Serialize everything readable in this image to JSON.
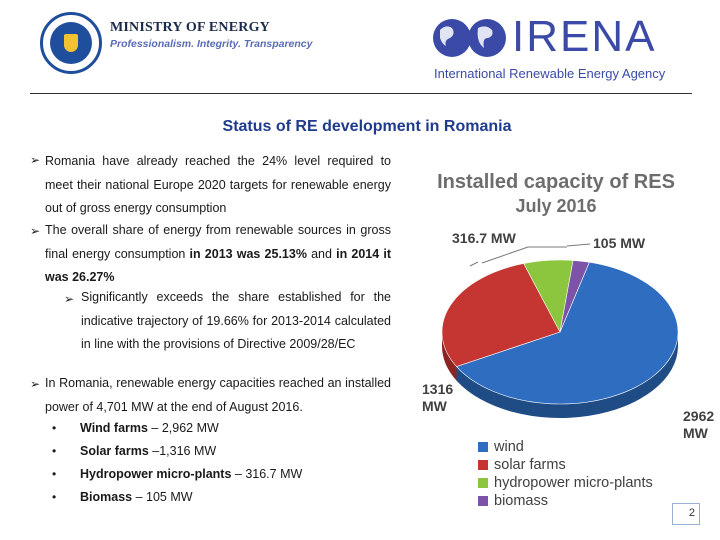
{
  "header": {
    "seal_text": "GUVERNUL ROMÂNIEI",
    "ministry_name": "MINISTRY OF ENERGY",
    "ministry_tagline": "Professionalism. Integrity. Transparency",
    "irena_name": "IRENA",
    "irena_full": "International Renewable Energy Agency"
  },
  "title": "Status of RE development in Romania",
  "bullets": {
    "b1": "Romania have already reached the 24% level required to meet their national Europe 2020 targets for renewable energy out of gross energy consumption",
    "b2_a": "The overall share of energy from renewable sources in gross final energy consumption ",
    "b2_b": "in 2013 was 25.13%",
    "b2_c": " and ",
    "b2_d": "in 2014 it was 26.27%",
    "b2_sub": "Significantly exceeds the share established for the indicative trajectory of 19.66% for 2013-2014 calculated in line with the provisions of Directive 2009/28/EC",
    "b3": "In Romania, renewable energy capacities reached an installed power of 4,701 MW at the end of August 2016.",
    "items": [
      {
        "label": "Wind farms",
        "value": " – 2,962 MW"
      },
      {
        "label": "Solar farms",
        "value": " –1,316 MW"
      },
      {
        "label": "Hydropower micro-plants",
        "value": " – 316.7 MW"
      },
      {
        "label": "Biomass",
        "value": " – 105 MW"
      }
    ]
  },
  "chart_data": {
    "type": "pie",
    "title": "Installed capacity of RES",
    "subtitle": "July 2016",
    "categories": [
      "wind",
      "solar farms",
      "hydropower micro-plants",
      "biomass"
    ],
    "values": [
      2962,
      1316,
      316.7,
      105
    ],
    "data_labels": [
      "2962 MW",
      "1316 MW",
      "316.7 MW",
      "105 MW"
    ],
    "colors": [
      "#2e6dc0",
      "#c53532",
      "#8cc63e",
      "#7c53a6"
    ],
    "legend_position": "bottom"
  },
  "page_number": "2"
}
